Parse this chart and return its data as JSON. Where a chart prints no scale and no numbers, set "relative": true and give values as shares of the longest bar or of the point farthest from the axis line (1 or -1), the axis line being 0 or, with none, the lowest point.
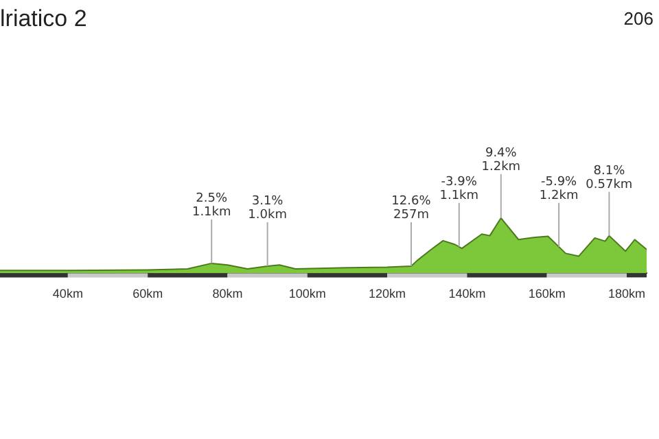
{
  "chart_data": {
    "type": "area",
    "title": "lriatico 2",
    "subtitle": "206",
    "relative": true,
    "color": "#7cc83a",
    "x": [
      23,
      40,
      60,
      70,
      76,
      80,
      85,
      90,
      93,
      97,
      110,
      120,
      126,
      127.5,
      131,
      134,
      137,
      138.7,
      143.7,
      145.7,
      148.5,
      152.9,
      157,
      160.3,
      164.7,
      168,
      172,
      174.6,
      175.6,
      179.7,
      182,
      185
    ],
    "values": [
      0.05,
      0.05,
      0.06,
      0.08,
      0.18,
      0.15,
      0.08,
      0.13,
      0.15,
      0.08,
      0.1,
      0.11,
      0.13,
      0.23,
      0.43,
      0.59,
      0.52,
      0.45,
      0.71,
      0.68,
      1,
      0.61,
      0.65,
      0.67,
      0.36,
      0.31,
      0.64,
      0.58,
      0.68,
      0.4,
      0.61,
      0.43
    ],
    "xlim": [
      23,
      185
    ],
    "xticks": [
      {
        "value": 40,
        "label": "40km"
      },
      {
        "value": 60,
        "label": "60km"
      },
      {
        "value": 80,
        "label": "80km"
      },
      {
        "value": 100,
        "label": "100km"
      },
      {
        "value": 120,
        "label": "120km"
      },
      {
        "value": 140,
        "label": "140km"
      },
      {
        "value": 160,
        "label": "160km"
      },
      {
        "value": 180,
        "label": "180km"
      }
    ],
    "tick_labels": "x",
    "grid": false,
    "legend": false,
    "annotations": [
      {
        "text": "2.5%\n1.1km",
        "x": 76,
        "y": 0.18
      },
      {
        "text": "3.1%\n1.0km",
        "x": 90,
        "y": 0.13
      },
      {
        "text": "12.6%\n257m",
        "x": 126,
        "y": 0.13
      },
      {
        "text": "-3.9%\n1.1km",
        "x": 138,
        "y": 0.48
      },
      {
        "text": "9.4%\n1.2km",
        "x": 148.5,
        "y": 1
      },
      {
        "text": "-5.9%\n1.2km",
        "x": 163,
        "y": 0.48
      },
      {
        "text": "8.1%\n0.57km",
        "x": 175.6,
        "y": 0.68
      }
    ]
  }
}
